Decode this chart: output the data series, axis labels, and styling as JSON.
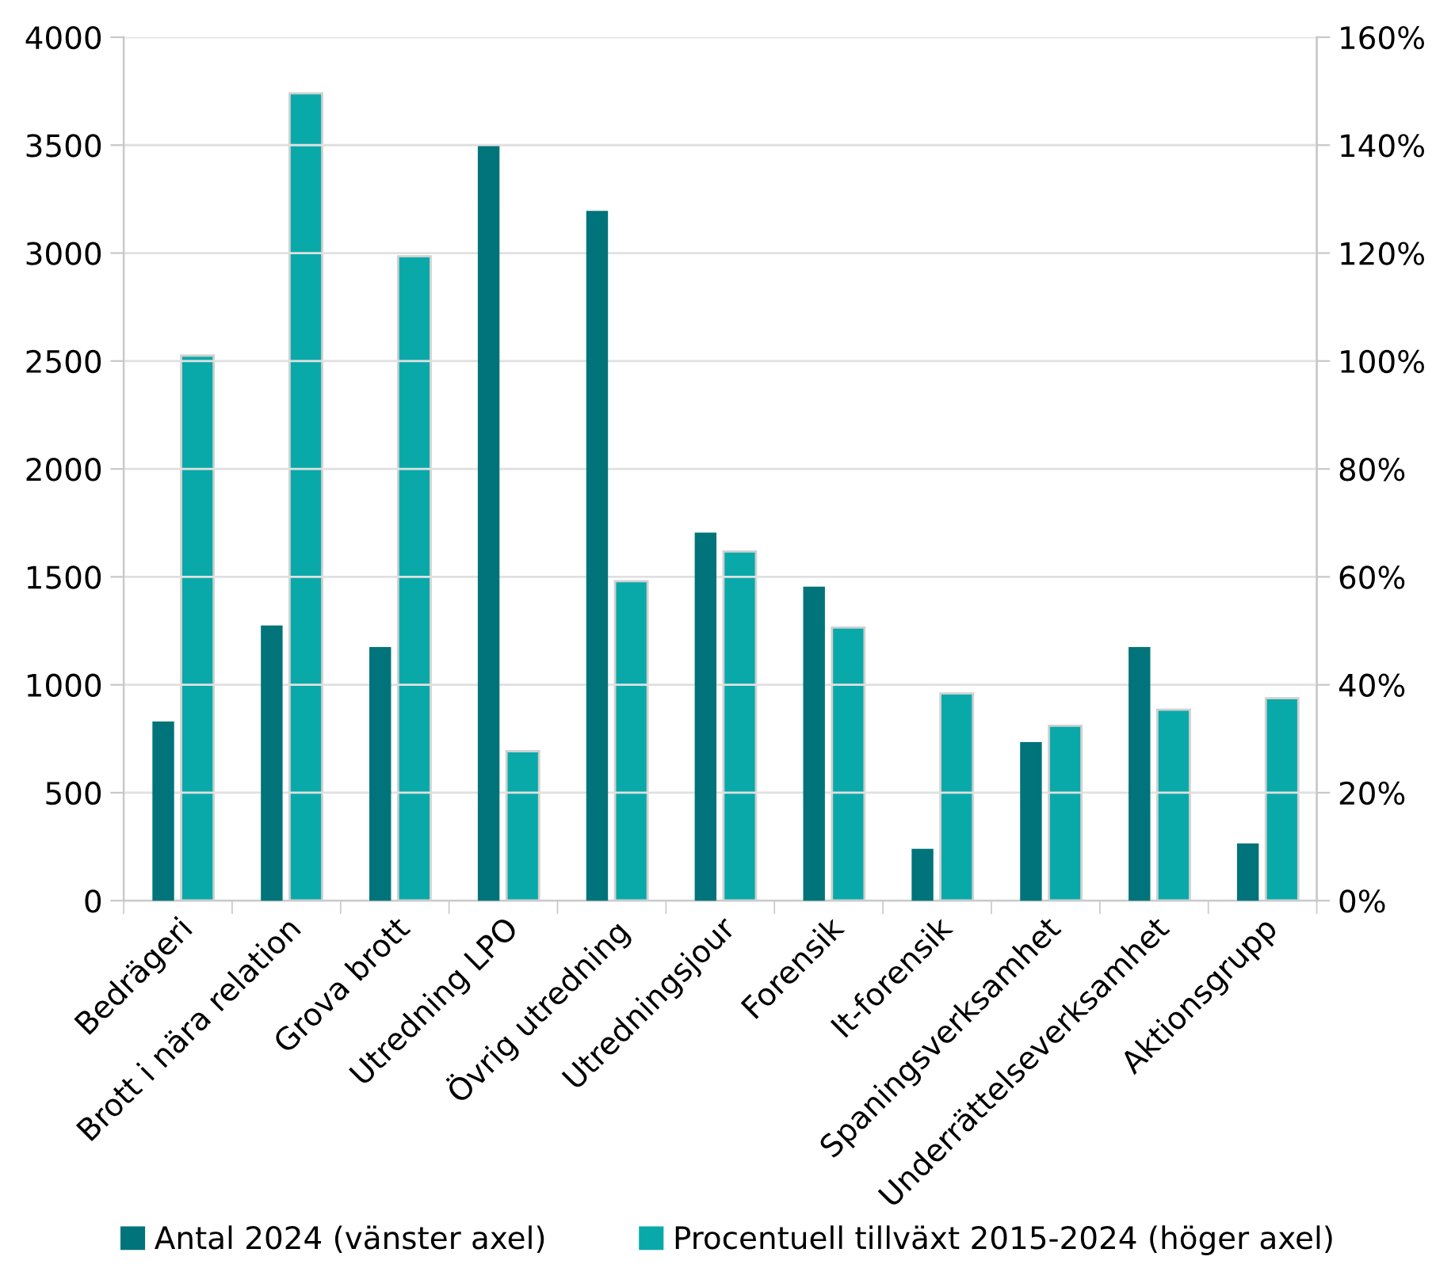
{
  "chart_data": {
    "type": "bar",
    "categories": [
      "Bedrägeri",
      "Brott i nära relation",
      "Grova brott",
      "Utredning LPO",
      "Övrig utredning",
      "Utredningsjour",
      "Forensik",
      "It-forensik",
      "Spaningsverksamhet",
      "Underrättelseverksamhet",
      "Aktionsgrupp"
    ],
    "series": [
      {
        "name": "Antal 2024 (vänster axel)",
        "color": "#00747a",
        "values": [
          825,
          1270,
          1170,
          3490,
          3190,
          1700,
          1450,
          235,
          730,
          1170,
          260
        ]
      },
      {
        "name": "Procentuell tillväxt 2015-2024 (höger axel)",
        "color": "#0aa9a9",
        "axis": "y2",
        "values": [
          101,
          149.6,
          119.4,
          27.7,
          59.2,
          64.7,
          50.6,
          38.4,
          32.4,
          35.4,
          37.5
        ]
      }
    ],
    "ylim": [
      0,
      4000
    ],
    "yticks": [
      0,
      500,
      1000,
      1500,
      2000,
      2500,
      3000,
      3500,
      4000
    ],
    "y2lim": [
      0,
      160
    ],
    "y2ticks": [
      {
        "value": 0,
        "label": "0%"
      },
      {
        "value": 20,
        "label": "20%"
      },
      {
        "value": 40,
        "label": "40%"
      },
      {
        "value": 60,
        "label": "60%"
      },
      {
        "value": 80,
        "label": "80%"
      },
      {
        "value": 100,
        "label": "100%"
      },
      {
        "value": 120,
        "label": "120%"
      },
      {
        "value": 140,
        "label": "140%"
      },
      {
        "value": 160,
        "label": "160%"
      }
    ],
    "grid": "y",
    "legend": "bottom"
  }
}
